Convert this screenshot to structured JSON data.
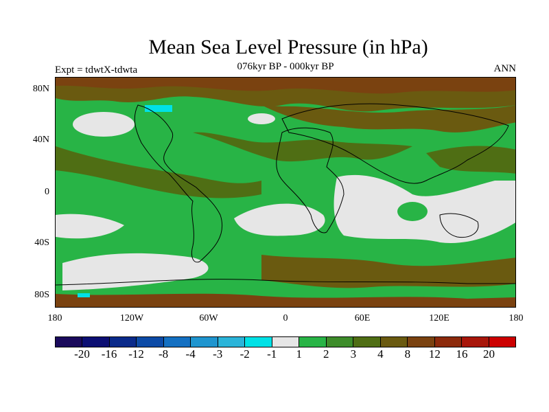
{
  "title": "Mean Sea Level Pressure (in hPa)",
  "subtitle": "076kyr BP - 000kyr BP",
  "left_label": "Expt = tdwtX-tdwta",
  "right_label": "ANN",
  "lat_ticks": [
    "80N",
    "40N",
    "0",
    "40S",
    "80S"
  ],
  "lon_ticks": [
    "180",
    "120W",
    "60W",
    "0",
    "60E",
    "120E",
    "180"
  ],
  "colorbar": {
    "colors": [
      "#1a0a5c",
      "#0c0f73",
      "#0a2a8a",
      "#0c4aa6",
      "#1470c2",
      "#1f95cf",
      "#2bb4d9",
      "#00e1e6",
      "#e6e6e6",
      "#28b446",
      "#3d8c2a",
      "#4f6e14",
      "#6a5a10",
      "#7a4210",
      "#8c2a0c",
      "#a8160a",
      "#cc0000"
    ],
    "labels": [
      "-20",
      "-16",
      "-12",
      "-8",
      "-4",
      "-3",
      "-2",
      "-1",
      "1",
      "2",
      "3",
      "4",
      "8",
      "12",
      "16",
      "20"
    ]
  },
  "map_colors": {
    "green": "#28b446",
    "olive": "#4f6e14",
    "brown": "#6a5a10",
    "dark_brown": "#7a4210",
    "grey": "#e6e6e6",
    "cyan": "#00e1e6",
    "coastline": "#000000"
  }
}
